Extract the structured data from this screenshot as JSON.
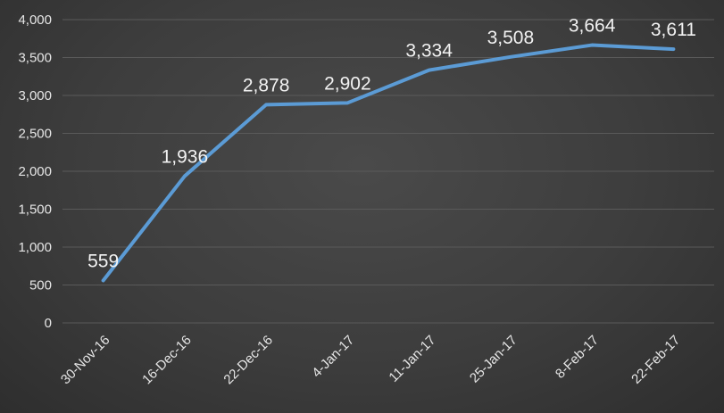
{
  "chart_data": {
    "type": "line",
    "categories": [
      "30-Nov-16",
      "16-Dec-16",
      "22-Dec-16",
      "4-Jan-17",
      "11-Jan-17",
      "25-Jan-17",
      "8-Feb-17",
      "22-Feb-17"
    ],
    "series": [
      {
        "values": [
          559,
          1936,
          2878,
          2902,
          3334,
          3508,
          3664,
          3611
        ],
        "labels": [
          "559",
          "1,936",
          "2,878",
          "2,902",
          "3,334",
          "3,508",
          "3,664",
          "3,611"
        ],
        "color": "#5b9bd5"
      }
    ],
    "yticks": [
      "0",
      "500",
      "1,000",
      "1,500",
      "2,000",
      "2,500",
      "3,000",
      "3,500",
      "4,000"
    ],
    "ylim": [
      0,
      4000
    ],
    "grid": true,
    "legend": "none"
  }
}
